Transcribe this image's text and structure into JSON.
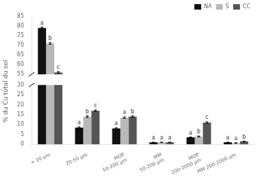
{
  "chart_data": [
    {
      "type": "bar",
      "categories": [
        "< 20 μm",
        "20-50 μm",
        "MOP\n50-200 μm",
        "MM\n50-200 μm",
        "MOP\n200-2000 μm",
        "MM 200-2000 μm"
      ],
      "tick_labels": "y",
      "legend": "upper right",
      "grid": false,
      "ylim": [
        55,
        85
      ],
      "yticks": [
        55,
        60,
        65,
        70,
        75,
        80,
        85
      ],
      "series": [
        {
          "name": "NA",
          "color": "#111111",
          "values": [
            79.0,
            null,
            null,
            null,
            null,
            null
          ],
          "error": [
            0.5,
            null,
            null,
            null,
            null,
            null
          ],
          "letters": [
            "a",
            null,
            null,
            null,
            null,
            null
          ]
        },
        {
          "name": "S",
          "color": "#b8b8b8",
          "values": [
            71.0,
            null,
            null,
            null,
            null,
            null
          ],
          "error": [
            0.4,
            null,
            null,
            null,
            null,
            null
          ],
          "letters": [
            "b",
            null,
            null,
            null,
            null,
            null
          ]
        },
        {
          "name": "CC",
          "color": "#555555",
          "values": [
            56.0,
            null,
            null,
            null,
            null,
            null
          ],
          "error": [
            0.4,
            null,
            null,
            null,
            null,
            null
          ],
          "letters": [
            "c",
            null,
            null,
            null,
            null,
            null
          ]
        }
      ]
    },
    {
      "type": "bar",
      "ylabel": "% du Cu total du sol",
      "categories": [
        "< 20 μm",
        "20-50 μm",
        "MOP\n50-200 μm",
        "MM\n50-200 μm",
        "MOP\n200-2000 μm",
        "MM 200-2000 μm"
      ],
      "grid": false,
      "ylim": [
        0,
        30
      ],
      "yticks": [
        0,
        5,
        10,
        15,
        20,
        25,
        30
      ],
      "series": [
        {
          "name": "NA",
          "color": "#111111",
          "values": [
            null,
            8.5,
            8.0,
            1.0,
            3.5,
            1.0
          ],
          "error": [
            null,
            0.3,
            0.4,
            0.1,
            0.2,
            0.1
          ],
          "letters": [
            null,
            "a",
            "a",
            "a",
            "a",
            "a"
          ]
        },
        {
          "name": "S",
          "color": "#b8b8b8",
          "values": [
            null,
            14.0,
            13.5,
            1.0,
            4.0,
            0.7
          ],
          "error": [
            null,
            0.4,
            0.4,
            0.1,
            0.2,
            0.1
          ],
          "letters": [
            null,
            "b",
            "a",
            "a",
            "b",
            "a"
          ]
        },
        {
          "name": "CC",
          "color": "#555555",
          "values": [
            null,
            17.0,
            14.0,
            1.0,
            11.0,
            1.5
          ],
          "error": [
            null,
            0.4,
            0.4,
            0.1,
            0.4,
            0.1
          ],
          "letters": [
            null,
            "c",
            "b",
            "a",
            "c",
            "b"
          ]
        }
      ]
    }
  ]
}
